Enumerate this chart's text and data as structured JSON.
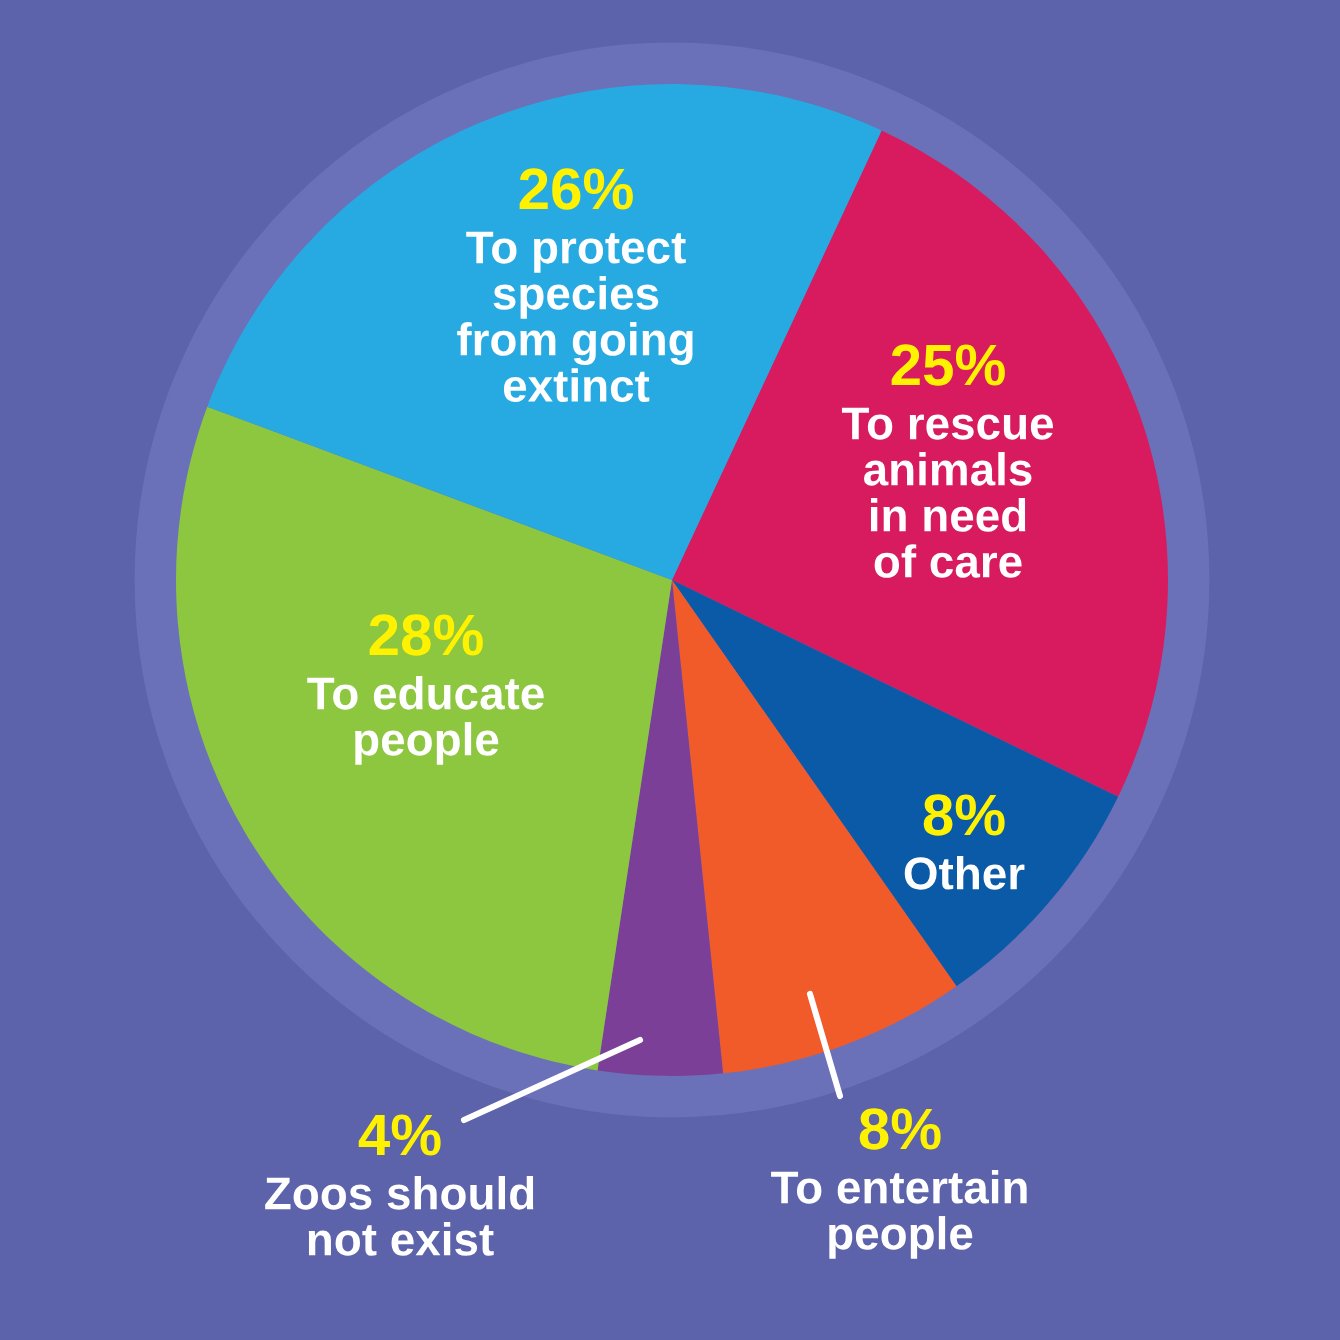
{
  "chart_data": {
    "type": "pie",
    "categories": [
      "To rescue\nanimals\nin need\nof care",
      "Other",
      "To entertain\npeople",
      "Zoos should\nnot exist",
      "To educate\npeople",
      "To protect\nspecies\nfrom going\nextinct"
    ],
    "values": [
      25,
      8,
      8,
      4,
      28,
      26
    ],
    "value_labels": [
      "25%",
      "8%",
      "8%",
      "4%",
      "28%",
      "26%"
    ],
    "colors": [
      "#d81b5f",
      "#0b5aa8",
      "#f15a29",
      "#7b3f98",
      "#8dc63f",
      "#27aae1"
    ],
    "legend": false
  }
}
